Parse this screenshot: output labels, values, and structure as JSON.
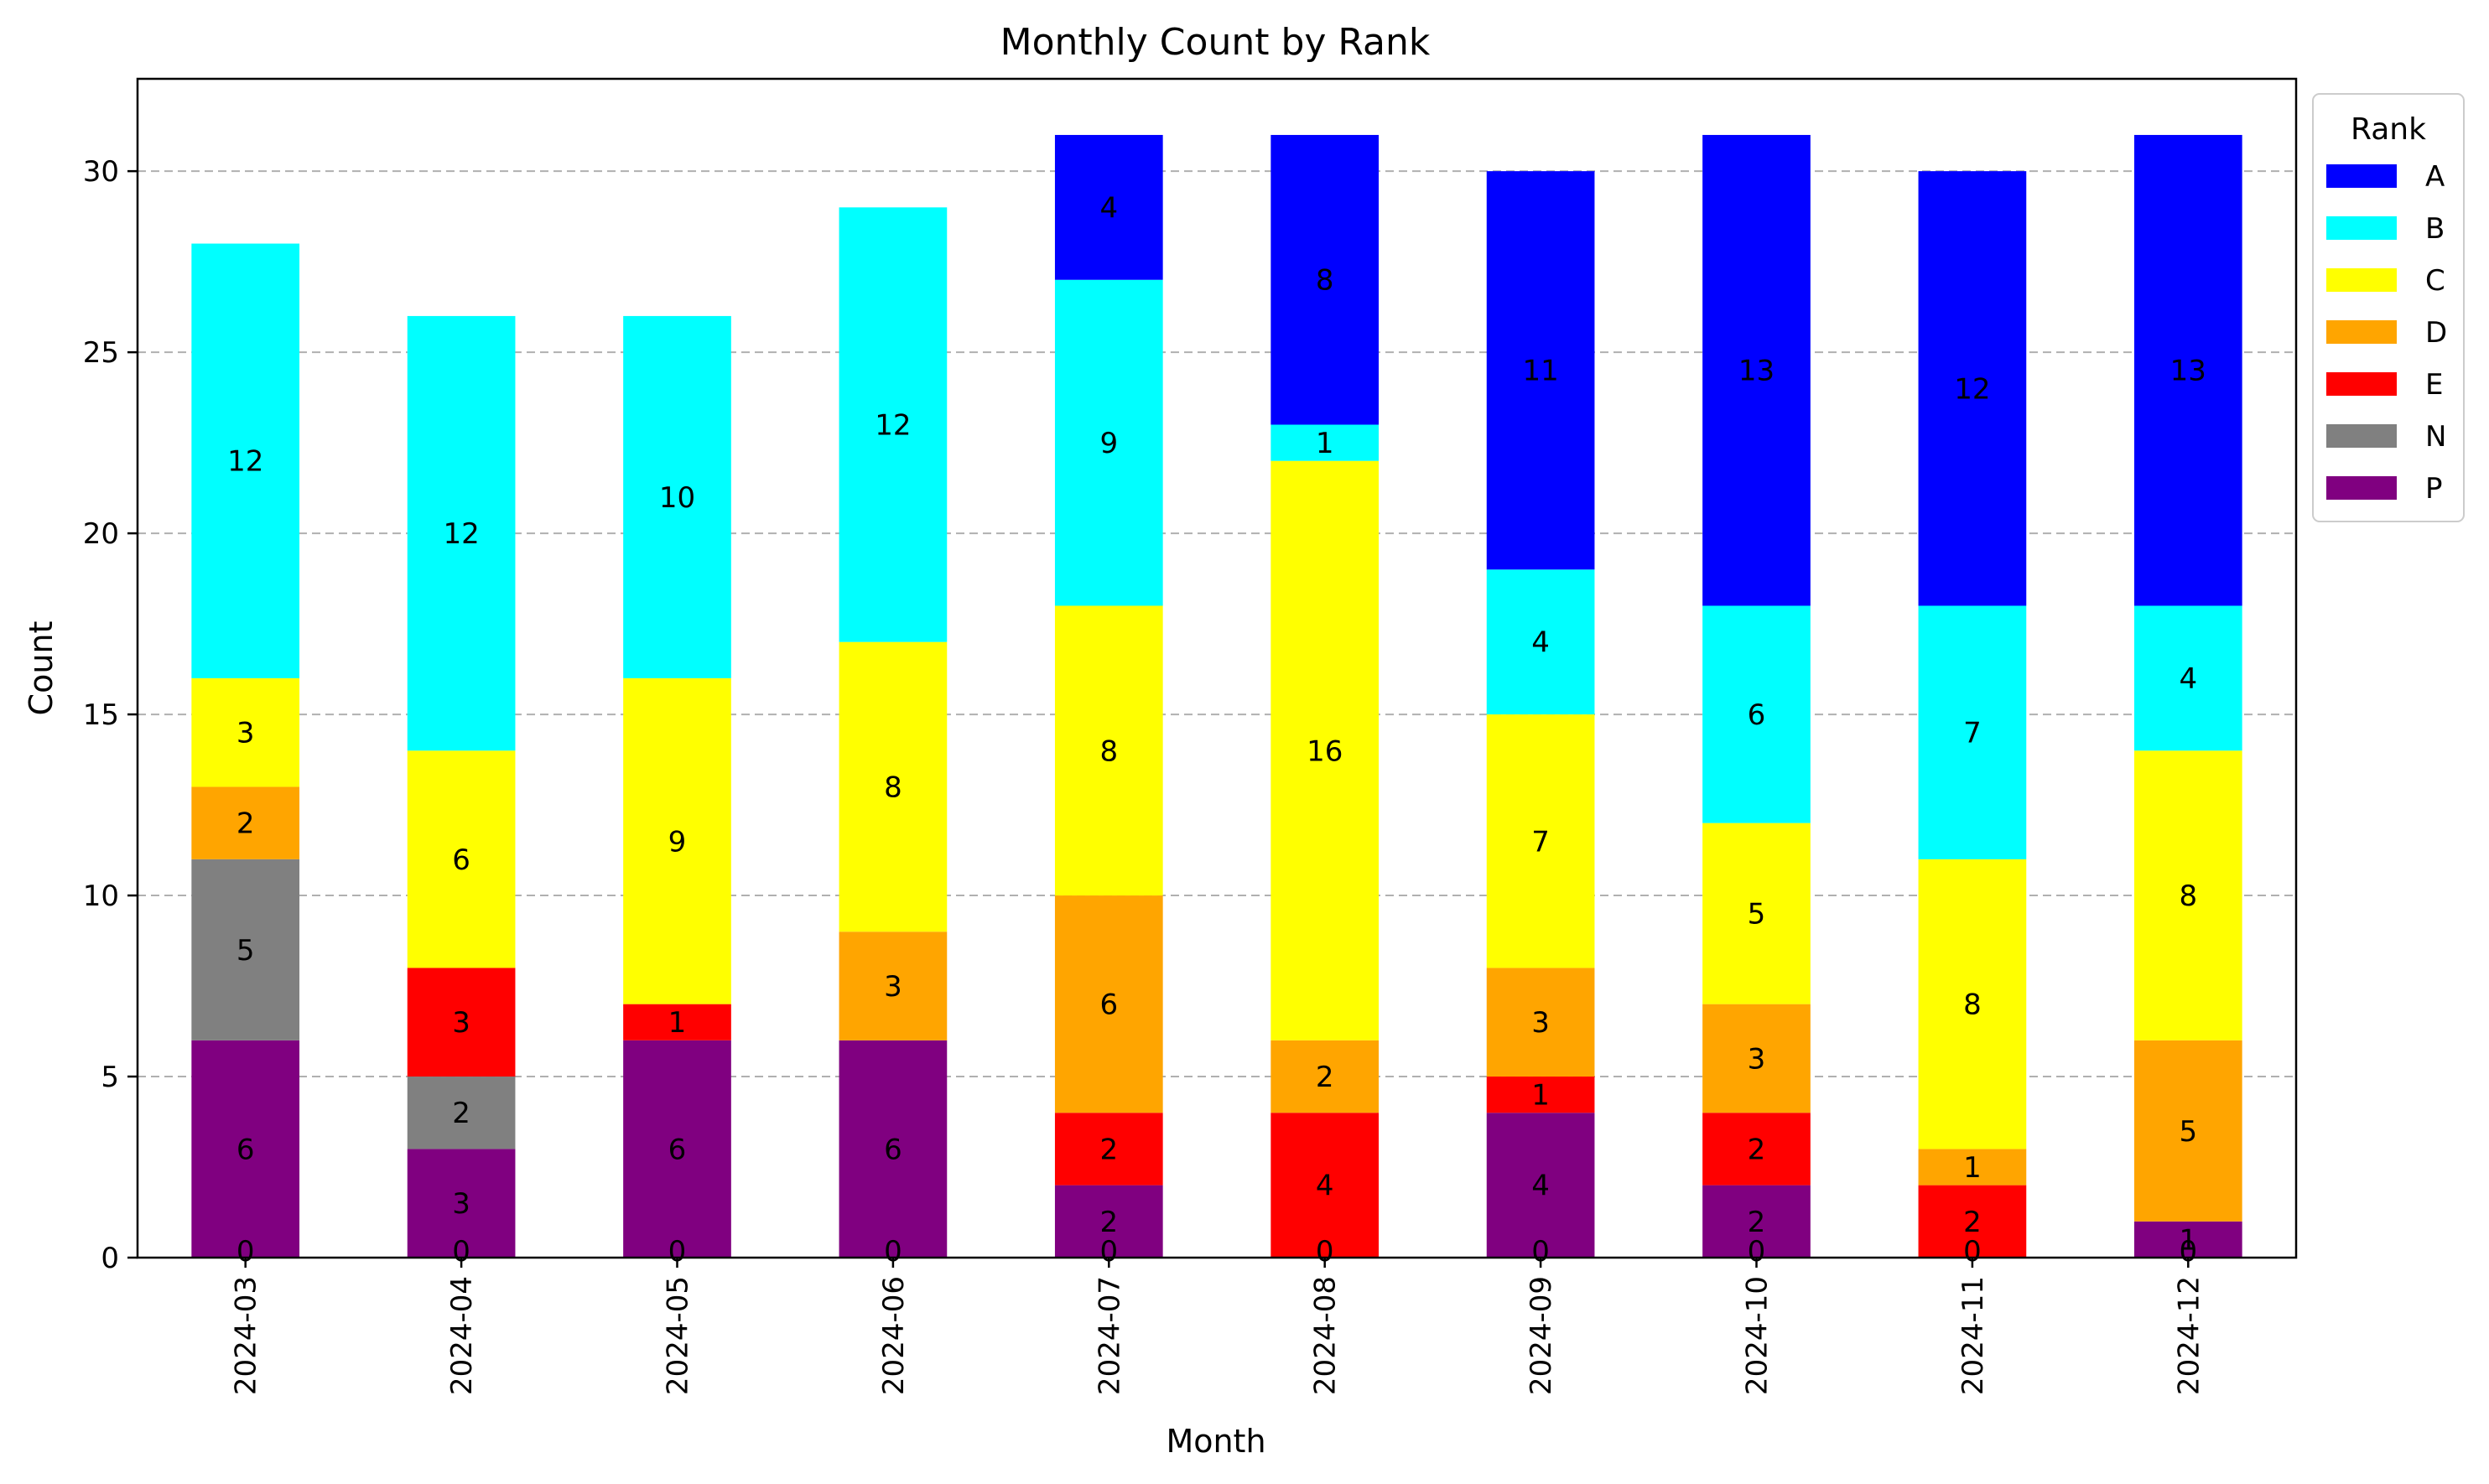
{
  "chart_data": {
    "type": "bar",
    "stacked": true,
    "title": "Monthly Count by Rank",
    "xlabel": "Month",
    "ylabel": "Count",
    "ylim": [
      0,
      32.55
    ],
    "yticks": [
      0,
      5,
      10,
      15,
      20,
      25,
      30
    ],
    "grid": "horizontal dashed",
    "legend": {
      "title": "Rank",
      "position": "outside right"
    },
    "categories": [
      "2024-03",
      "2024-04",
      "2024-05",
      "2024-06",
      "2024-07",
      "2024-08",
      "2024-09",
      "2024-10",
      "2024-11",
      "2024-12"
    ],
    "series": [
      {
        "name": "P",
        "color": "#800080",
        "values": [
          6,
          3,
          6,
          6,
          2,
          0,
          4,
          2,
          0,
          1
        ]
      },
      {
        "name": "N",
        "color": "#808080",
        "values": [
          5,
          2,
          0,
          0,
          0,
          0,
          0,
          0,
          0,
          0
        ]
      },
      {
        "name": "E",
        "color": "#ff0000",
        "values": [
          0,
          3,
          1,
          0,
          2,
          4,
          1,
          2,
          2,
          0
        ]
      },
      {
        "name": "D",
        "color": "#ffa500",
        "values": [
          2,
          0,
          0,
          3,
          6,
          2,
          3,
          3,
          1,
          5
        ]
      },
      {
        "name": "C",
        "color": "#ffff00",
        "values": [
          3,
          6,
          9,
          8,
          8,
          16,
          7,
          5,
          8,
          8
        ]
      },
      {
        "name": "B",
        "color": "#00ffff",
        "values": [
          12,
          12,
          10,
          12,
          9,
          1,
          4,
          6,
          7,
          4
        ]
      },
      {
        "name": "A",
        "color": "#0000ff",
        "values": [
          0,
          0,
          0,
          0,
          4,
          8,
          11,
          13,
          12,
          13
        ]
      }
    ],
    "legend_order": [
      "A",
      "B",
      "C",
      "D",
      "E",
      "N",
      "P"
    ],
    "zero_labels_at_baseline": [
      "0",
      "0",
      "0",
      "0",
      "0",
      "0",
      "0",
      "0",
      "0",
      "0"
    ]
  }
}
